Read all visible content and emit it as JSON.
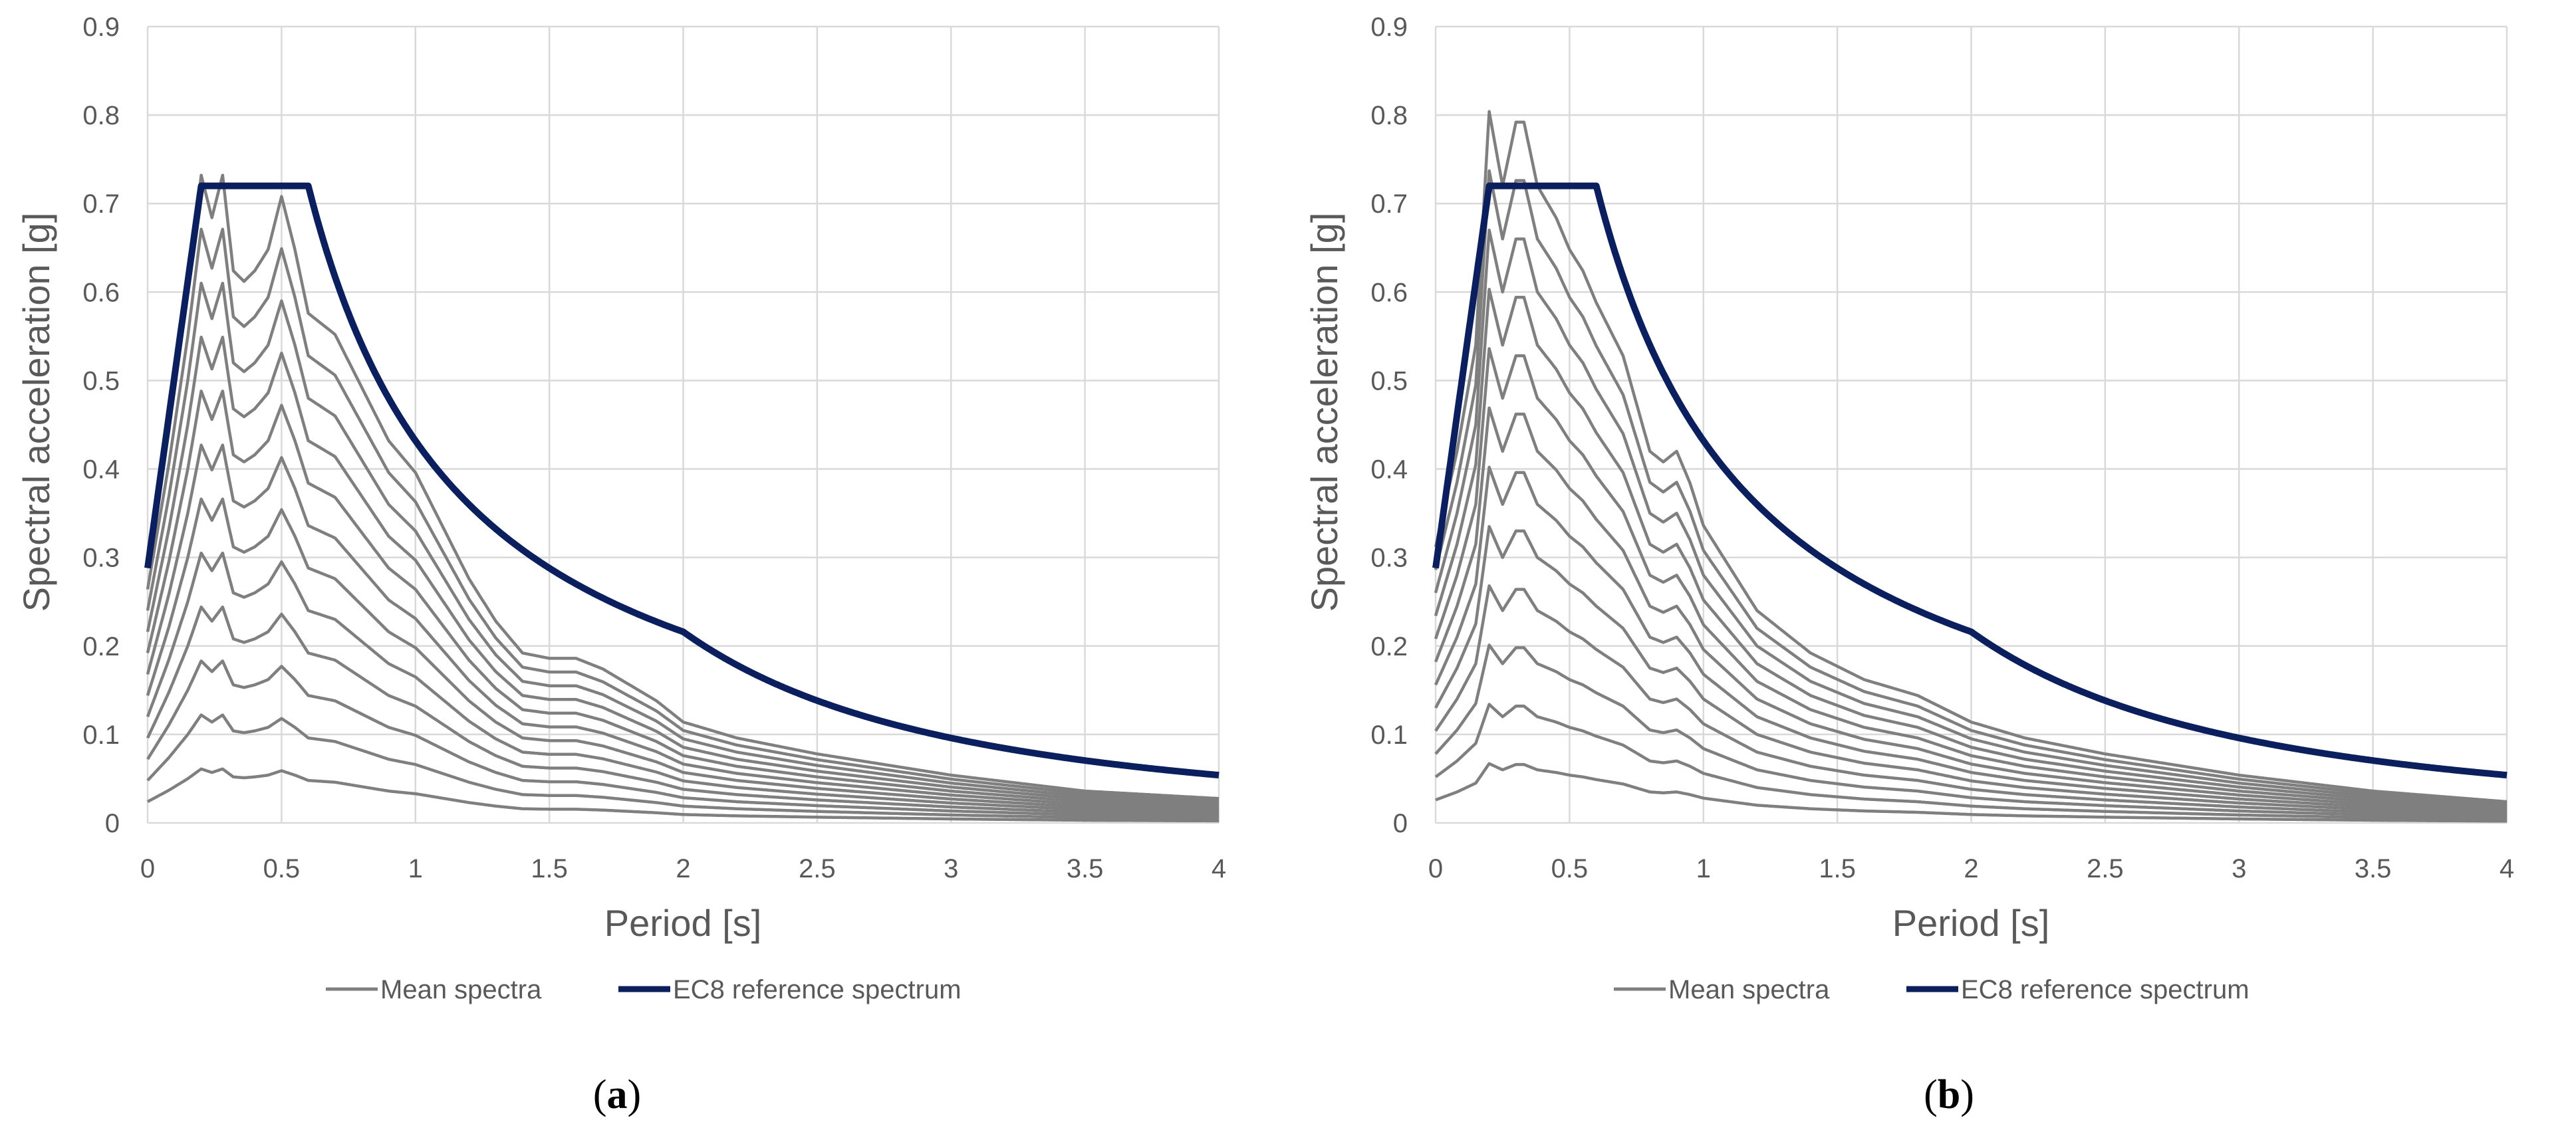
{
  "colors": {
    "mean": "#7f7f7f",
    "ec8": "#0b1f5e",
    "grid": "#d9d9d9",
    "text": "#595959"
  },
  "chart_data": [
    {
      "type": "line",
      "panel_label": "a",
      "xlabel": "Period [s]",
      "ylabel": "Spectral acceleration [g]",
      "xlim": [
        0,
        4
      ],
      "ylim": [
        0,
        0.9
      ],
      "x_ticks": [
        "0",
        "0.5",
        "1",
        "1.5",
        "2",
        "2.5",
        "3",
        "3.5",
        "4"
      ],
      "y_ticks": [
        "0",
        "0.1",
        "0.2",
        "0.3",
        "0.4",
        "0.5",
        "0.6",
        "0.7",
        "0.8",
        "0.9"
      ],
      "grid": true,
      "legend": {
        "position": "bottom",
        "entries": [
          "Mean spectra",
          "EC8 reference spectrum"
        ]
      },
      "series": [
        {
          "name": "EC8 reference spectrum",
          "x": [
            0,
            0.2,
            0.6,
            0.8,
            1.0,
            1.2,
            1.5,
            1.8,
            2.0,
            2.5,
            3.0,
            3.5,
            4.0
          ],
          "y": [
            0.288,
            0.72,
            0.72,
            0.54,
            0.432,
            0.36,
            0.288,
            0.24,
            0.216,
            0.138,
            0.096,
            0.0705,
            0.054
          ]
        },
        {
          "name": "Mean spectra",
          "scale_factors": [
            0.1,
            0.2,
            0.3,
            0.4,
            0.5,
            0.6,
            0.7,
            0.8,
            0.9,
            1.0,
            1.1,
            1.2
          ],
          "x": [
            0,
            0.08,
            0.15,
            0.2,
            0.24,
            0.28,
            0.32,
            0.36,
            0.4,
            0.45,
            0.5,
            0.55,
            0.6,
            0.7,
            0.8,
            0.9,
            1.0,
            1.1,
            1.2,
            1.3,
            1.4,
            1.5,
            1.6,
            1.7,
            1.8,
            1.9,
            2.0,
            2.2,
            2.5,
            3.0,
            3.5,
            4.0
          ],
          "y": [
            0.024,
            0.037,
            0.05,
            0.061,
            0.057,
            0.061,
            0.052,
            0.051,
            0.052,
            0.054,
            0.059,
            0.054,
            0.048,
            0.046,
            0.041,
            0.036,
            0.033,
            0.028,
            0.023,
            0.019,
            0.016,
            0.0155,
            0.0155,
            0.0145,
            0.013,
            0.0115,
            0.0095,
            0.008,
            0.0065,
            0.0045,
            0.003,
            0.0023
          ]
        }
      ]
    },
    {
      "type": "line",
      "panel_label": "b",
      "xlabel": "Period [s]",
      "ylabel": "Spectral acceleration [g]",
      "xlim": [
        0,
        4
      ],
      "ylim": [
        0,
        0.9
      ],
      "x_ticks": [
        "0",
        "0.5",
        "1",
        "1.5",
        "2",
        "2.5",
        "3",
        "3.5",
        "4"
      ],
      "y_ticks": [
        "0",
        "0.1",
        "0.2",
        "0.3",
        "0.4",
        "0.5",
        "0.6",
        "0.7",
        "0.8",
        "0.9"
      ],
      "grid": true,
      "legend": {
        "position": "bottom",
        "entries": [
          "Mean spectra",
          "EC8 reference spectrum"
        ]
      },
      "series": [
        {
          "name": "EC8 reference spectrum",
          "x": [
            0,
            0.2,
            0.6,
            0.8,
            1.0,
            1.2,
            1.5,
            1.8,
            2.0,
            2.5,
            3.0,
            3.5,
            4.0
          ],
          "y": [
            0.288,
            0.72,
            0.72,
            0.54,
            0.432,
            0.36,
            0.288,
            0.24,
            0.216,
            0.138,
            0.096,
            0.0705,
            0.054
          ]
        },
        {
          "name": "Mean spectra",
          "scale_factors": [
            0.1,
            0.2,
            0.3,
            0.4,
            0.5,
            0.6,
            0.7,
            0.8,
            0.9,
            1.0,
            1.1,
            1.2
          ],
          "x": [
            0,
            0.08,
            0.15,
            0.2,
            0.25,
            0.3,
            0.33,
            0.38,
            0.45,
            0.5,
            0.55,
            0.6,
            0.7,
            0.8,
            0.85,
            0.9,
            0.95,
            1.0,
            1.2,
            1.4,
            1.6,
            1.8,
            2.0,
            2.2,
            2.5,
            3.0,
            3.5,
            4.0
          ],
          "y": [
            0.026,
            0.035,
            0.045,
            0.067,
            0.06,
            0.066,
            0.066,
            0.06,
            0.057,
            0.054,
            0.052,
            0.049,
            0.044,
            0.035,
            0.034,
            0.035,
            0.032,
            0.028,
            0.02,
            0.016,
            0.0135,
            0.012,
            0.0095,
            0.008,
            0.0065,
            0.0045,
            0.003,
            0.002
          ]
        }
      ]
    }
  ]
}
